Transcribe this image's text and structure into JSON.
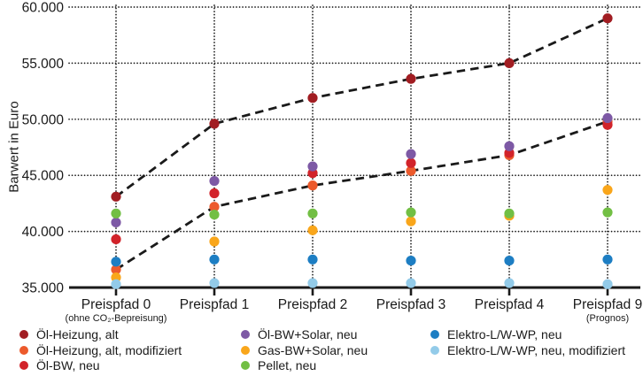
{
  "chart_data": {
    "type": "scatter",
    "title": "",
    "xlabel": "",
    "ylabel": "Barwert in Euro",
    "ylim": [
      35000,
      60000
    ],
    "yticks": [
      35000,
      40000,
      45000,
      50000,
      55000,
      60000
    ],
    "ytick_labels": [
      "35.000",
      "40.000",
      "45.000",
      "50.000",
      "55.000",
      "60.000"
    ],
    "grid": "dotted, horizontal and vertical",
    "categories": [
      "Preispfad 0",
      "Preispfad 1",
      "Preispfad 2",
      "Preispfad 3",
      "Preispfad 4",
      "Preispfad 9"
    ],
    "category_sublabels": [
      "(ohne CO₂-Bepreisung)",
      "",
      "",
      "",
      "",
      "(Prognos)"
    ],
    "series": [
      {
        "name": "Öl-Heizung, alt",
        "color": "#a11d22",
        "dashed_trend_line": true,
        "values": [
          43100,
          49600,
          51900,
          53600,
          55000,
          59000
        ]
      },
      {
        "name": "Öl-Heizung, alt, modifiziert",
        "color": "#ec5a2c",
        "dashed_trend_line": true,
        "values": [
          36600,
          42200,
          44100,
          45400,
          46800,
          49800
        ]
      },
      {
        "name": "Öl-BW, neu",
        "color": "#d2232a",
        "dashed_trend_line": false,
        "values": [
          39300,
          43400,
          45200,
          46100,
          47000,
          49500
        ]
      },
      {
        "name": "Öl-BW+Solar, neu",
        "color": "#7d59a5",
        "dashed_trend_line": false,
        "values": [
          40800,
          44500,
          45800,
          46900,
          47600,
          50100
        ]
      },
      {
        "name": "Gas-BW+Solar, neu",
        "color": "#f9a61b",
        "dashed_trend_line": false,
        "values": [
          35900,
          39100,
          40100,
          40900,
          41400,
          43700
        ]
      },
      {
        "name": "Pellet, neu",
        "color": "#72bf44",
        "dashed_trend_line": false,
        "values": [
          41600,
          41500,
          41600,
          41700,
          41600,
          41700
        ]
      },
      {
        "name": "Elektro-L/W-WP, neu",
        "color": "#1d7ec3",
        "dashed_trend_line": false,
        "values": [
          37300,
          37500,
          37500,
          37400,
          37400,
          37500
        ]
      },
      {
        "name": "Elektro-L/W-WP, neu, modifiziert",
        "color": "#93cbe9",
        "dashed_trend_line": false,
        "values": [
          35300,
          35400,
          35400,
          35400,
          35400,
          35300
        ]
      }
    ],
    "legend": {
      "position": "bottom",
      "columns": [
        [
          0,
          1,
          2
        ],
        [
          3,
          4,
          5
        ],
        [
          6,
          7
        ]
      ]
    },
    "trend_line_color": "#1a1a1a",
    "axis_color": "#1a1a1a"
  }
}
